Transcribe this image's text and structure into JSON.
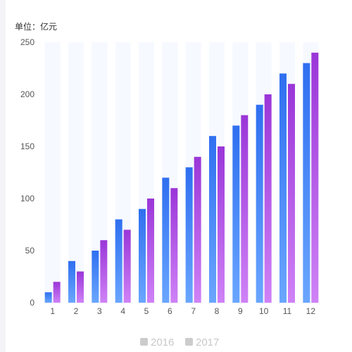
{
  "chart_data": {
    "type": "bar",
    "unit_label": "单位：亿元",
    "categories": [
      "1",
      "2",
      "3",
      "4",
      "5",
      "6",
      "7",
      "8",
      "9",
      "10",
      "11",
      "12"
    ],
    "series": [
      {
        "name": "2016",
        "values": [
          10,
          40,
          50,
          80,
          90,
          120,
          130,
          160,
          170,
          190,
          220,
          230
        ]
      },
      {
        "name": "2017",
        "values": [
          20,
          30,
          60,
          70,
          100,
          110,
          140,
          150,
          180,
          200,
          210,
          240
        ]
      }
    ],
    "y_ticks": [
      0,
      50,
      100,
      150,
      200,
      250
    ],
    "ylim": [
      0,
      250
    ],
    "legend_position": "bottom-center",
    "background_bands": true,
    "colors": {
      "series_2016_top": "#2f6ff0",
      "series_2016_bottom": "#6aa6ff",
      "series_2017_top": "#9a36d8",
      "series_2017_bottom": "#cf82f6",
      "band": "#f6f9ff",
      "legend_swatch": "#cccccc"
    }
  }
}
